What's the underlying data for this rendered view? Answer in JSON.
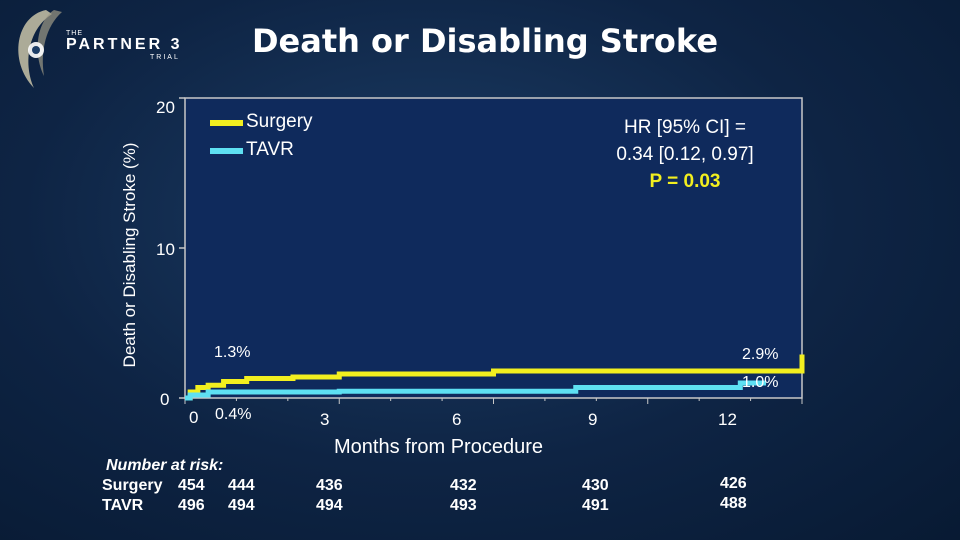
{
  "logo": {
    "the": "THE",
    "name": "PARTNER 3",
    "trial": "TRIAL"
  },
  "title": "Death or Disabling Stroke",
  "chart_data": {
    "type": "line",
    "title": "Death or Disabling Stroke",
    "xlabel": "Months from Procedure",
    "ylabel": "Death or Disabling Stroke (%)",
    "xlim": [
      0,
      12
    ],
    "ylim": [
      0,
      20
    ],
    "x_ticks": [
      0,
      3,
      6,
      9,
      12
    ],
    "y_ticks": [
      0,
      10,
      20
    ],
    "x_tick_labels": [
      "0",
      "3",
      "6",
      "9",
      "12"
    ],
    "y_tick_labels": [
      "0",
      "10",
      "20"
    ],
    "grid": false,
    "legend_position": "top-left",
    "series": [
      {
        "name": "Surgery",
        "color": "#f2ef1f",
        "points": [
          [
            0,
            0
          ],
          [
            0.1,
            0.4
          ],
          [
            0.25,
            0.7
          ],
          [
            0.45,
            0.85
          ],
          [
            0.75,
            1.1
          ],
          [
            1.2,
            1.3
          ],
          [
            2.1,
            1.4
          ],
          [
            3.0,
            1.6
          ],
          [
            6.0,
            1.8
          ],
          [
            12,
            2.9
          ]
        ]
      },
      {
        "name": "TAVR",
        "color": "#5ee0f2",
        "points": [
          [
            0,
            0
          ],
          [
            0.1,
            0.2
          ],
          [
            0.3,
            0.2
          ],
          [
            0.45,
            0.4
          ],
          [
            3.0,
            0.45
          ],
          [
            7.6,
            0.7
          ],
          [
            10.8,
            1.0
          ],
          [
            11.3,
            1.0
          ]
        ]
      }
    ],
    "annotations": [
      "1.3%",
      "0.4%",
      "2.9%",
      "1.0%"
    ]
  },
  "stats": {
    "hr_line1": "HR [95% CI] =",
    "hr_line2": "0.34 [0.12, 0.97]",
    "p": "P = 0.03"
  },
  "risk": {
    "title": "Number at risk:",
    "surgery_label": "Surgery",
    "tavr_label": "TAVR",
    "surgery": [
      "454",
      "444",
      "436",
      "432",
      "430",
      "426"
    ],
    "tavr": [
      "496",
      "494",
      "494",
      "493",
      "491",
      "488"
    ]
  }
}
